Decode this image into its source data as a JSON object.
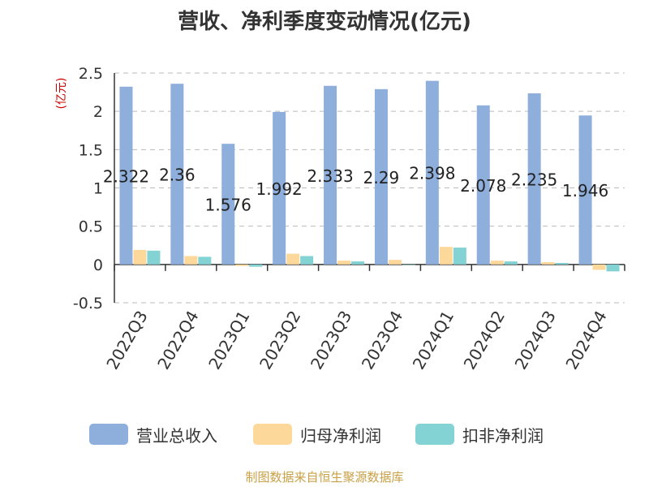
{
  "title": "营收、净利季度变动情况(亿元)",
  "footer": "制图数据来自恒生聚源数据库",
  "chart_data": {
    "type": "bar",
    "title": "营收、净利季度变动情况(亿元)",
    "ylabel": "(亿元)",
    "ylim": [
      -0.5,
      2.5
    ],
    "yticks": [
      "-0.5",
      "0",
      "0.5",
      "1",
      "1.5",
      "2",
      "2.5"
    ],
    "yticks_values": [
      -0.5,
      0,
      0.5,
      1,
      1.5,
      2,
      2.5
    ],
    "grid": true,
    "legend_position": "bottom",
    "categories": [
      "2022Q3",
      "2022Q4",
      "2023Q1",
      "2023Q2",
      "2023Q3",
      "2023Q4",
      "2024Q1",
      "2024Q2",
      "2024Q3",
      "2024Q4"
    ],
    "series": [
      {
        "name": "营业总收入",
        "color": "#8eaedc",
        "values": [
          2.322,
          2.36,
          1.576,
          1.992,
          2.333,
          2.29,
          2.398,
          2.078,
          2.235,
          1.946
        ],
        "labels": [
          "2.322",
          "2.36",
          "1.576",
          "1.992",
          "2.333",
          "2.29",
          "2.398",
          "2.078",
          "2.235",
          "1.946"
        ]
      },
      {
        "name": "归母净利润",
        "color": "#fdd89b",
        "values": [
          0.19,
          0.11,
          -0.02,
          0.14,
          0.05,
          0.06,
          0.23,
          0.05,
          0.03,
          -0.07
        ]
      },
      {
        "name": "扣非净利润",
        "color": "#83d2d4",
        "values": [
          0.18,
          0.1,
          -0.03,
          0.11,
          0.04,
          0.0,
          0.22,
          0.04,
          0.02,
          -0.09
        ]
      }
    ]
  }
}
